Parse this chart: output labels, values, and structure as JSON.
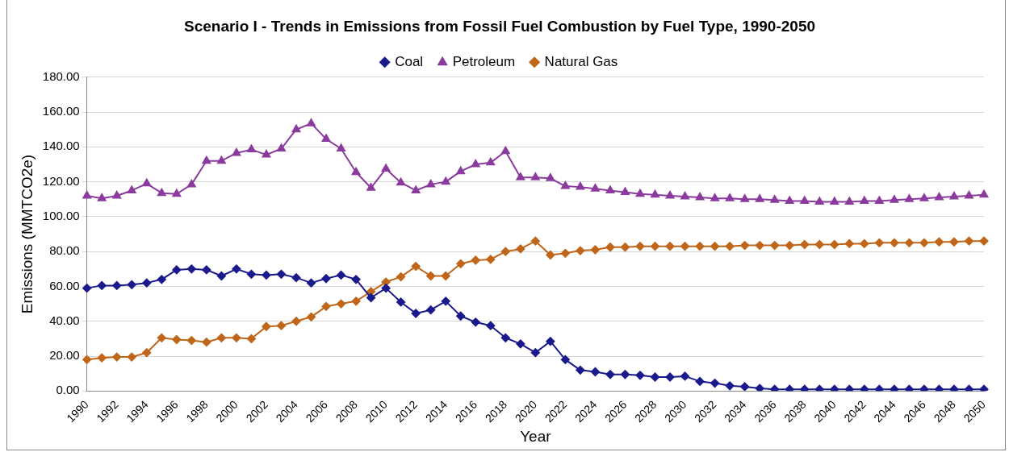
{
  "chart_data": {
    "type": "line",
    "title": "Scenario I - Trends in Emissions from Fossil Fuel Combustion by Fuel Type, 1990-2050",
    "xlabel": "Year",
    "ylabel": "Emissions (MMTCO2e)",
    "categories": [
      "1990",
      null,
      "1992",
      null,
      "1994",
      null,
      "1996",
      null,
      "1998",
      null,
      "2000",
      null,
      "2002",
      null,
      "2004",
      null,
      "2006",
      null,
      "2008",
      null,
      "2010",
      null,
      "2012",
      null,
      "2014",
      null,
      "2016",
      null,
      "2018",
      null,
      "2020",
      null,
      "2022",
      null,
      "2024",
      null,
      "2026",
      null,
      "2028",
      null,
      "2030",
      null,
      "2032",
      null,
      "2034",
      null,
      "2036",
      null,
      "2038",
      null,
      "2040",
      null,
      "2042",
      null,
      "2044",
      null,
      "2046",
      null,
      "2048",
      null,
      "2050"
    ],
    "series": [
      {
        "name": "Coal",
        "color": "#1a1a8c",
        "marker": "diamond",
        "values": [
          59,
          60.5,
          60.5,
          61,
          62,
          64,
          69.5,
          70,
          69.5,
          66,
          70,
          67,
          66.5,
          67,
          65,
          62,
          64.5,
          66.5,
          64,
          53.5,
          59,
          51,
          44.5,
          46.5,
          51.5,
          43,
          39.5,
          37.5,
          30.5,
          27,
          22,
          28.5,
          18,
          12,
          11,
          9.5,
          9.5,
          9,
          8,
          8,
          8.5,
          5.5,
          4.5,
          3,
          2.5,
          1.5,
          1,
          1,
          1,
          1,
          1,
          1,
          1,
          1,
          1,
          1,
          1,
          1,
          1,
          1,
          1
        ]
      },
      {
        "name": "Petroleum",
        "color": "#8b3a9e",
        "marker": "triangle",
        "values": [
          112,
          110.5,
          112,
          115,
          119,
          113.5,
          113,
          118.5,
          132,
          132,
          136.5,
          138.5,
          135.5,
          139,
          150,
          153.5,
          144.5,
          139,
          125.5,
          116.5,
          127.5,
          119.5,
          115,
          118.5,
          120,
          126,
          130,
          131,
          137.5,
          122.5,
          122.5,
          122,
          117.5,
          117,
          116,
          115,
          114,
          113,
          112.5,
          112,
          111.5,
          111,
          110.5,
          110.5,
          110,
          110,
          109.5,
          109,
          109,
          108.5,
          108.5,
          108.5,
          109,
          109,
          109.5,
          110,
          110.5,
          111,
          111.5,
          112,
          112.5
        ]
      },
      {
        "name": "Natural Gas",
        "color": "#c0661a",
        "marker": "diamond",
        "values": [
          18,
          19,
          19.5,
          19.5,
          22,
          30.5,
          29.5,
          29,
          28,
          30.5,
          30.5,
          30,
          37,
          37.5,
          40,
          42.5,
          48.5,
          50,
          51.5,
          57,
          62.5,
          65.5,
          71.5,
          66,
          66,
          73,
          75,
          75.5,
          80,
          81.5,
          86,
          78,
          79,
          80.5,
          81,
          82.5,
          82.5,
          83,
          83,
          83,
          83,
          83,
          83,
          83,
          83.5,
          83.5,
          83.5,
          83.5,
          84,
          84,
          84,
          84.5,
          84.5,
          85,
          85,
          85,
          85,
          85.5,
          85.5,
          86,
          86
        ]
      }
    ],
    "ylim": [
      0,
      180
    ],
    "yticks": [
      {
        "value": 0,
        "label": "0.00"
      },
      {
        "value": 20,
        "label": "20.00"
      },
      {
        "value": 40,
        "label": "40.00"
      },
      {
        "value": 60,
        "label": "60.00"
      },
      {
        "value": 80,
        "label": "80.00"
      },
      {
        "value": 100,
        "label": "100.00"
      },
      {
        "value": 120,
        "label": "120.00"
      },
      {
        "value": 140,
        "label": "140.00"
      },
      {
        "value": 160,
        "label": "160.00"
      },
      {
        "value": 180,
        "label": "180.00"
      }
    ],
    "grid": "y",
    "legend": "top",
    "line_style": "solid"
  }
}
